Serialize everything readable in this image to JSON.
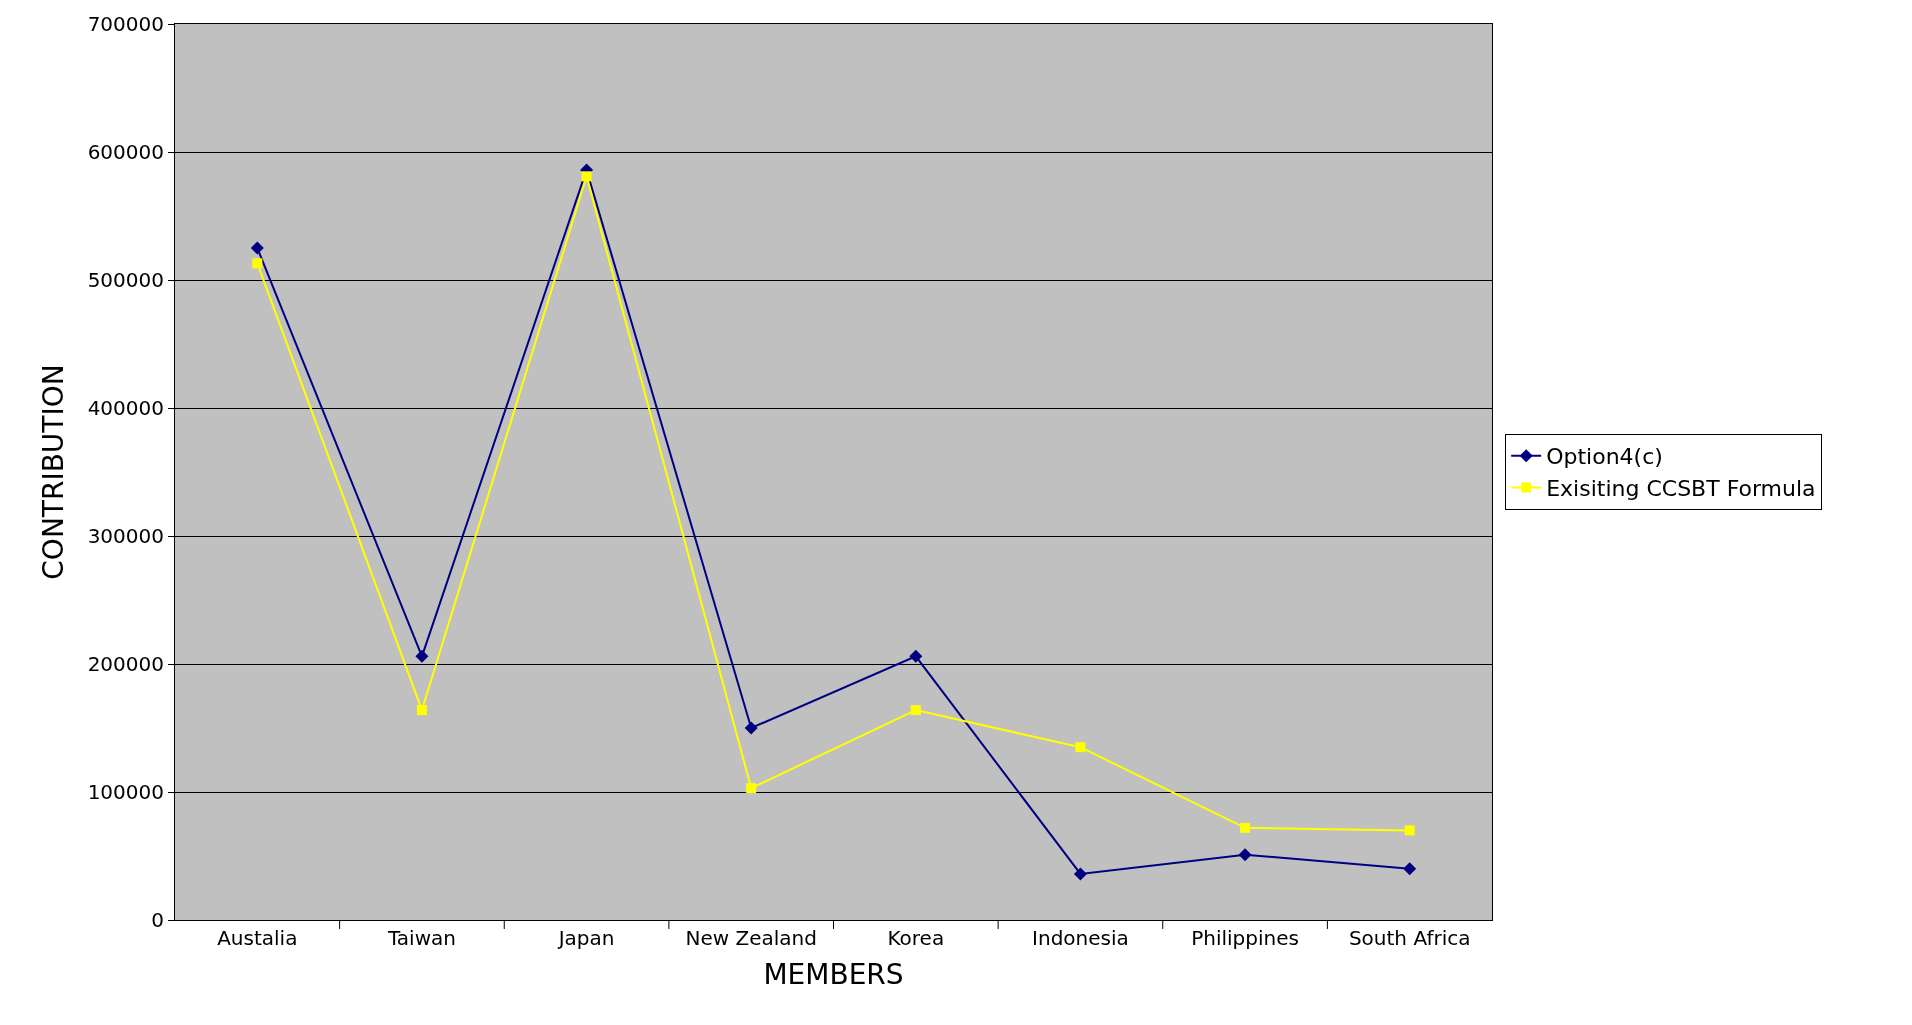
{
  "chart_data": {
    "type": "line",
    "xlabel": "MEMBERS",
    "ylabel": "CONTRIBUTION",
    "categories": [
      "Austalia",
      "Taiwan",
      "Japan",
      "New Zealand",
      "Korea",
      "Indonesia",
      "Philippines",
      "South Africa"
    ],
    "series": [
      {
        "name": "Option4(c)",
        "color": "#000080",
        "marker": "diamond",
        "values": [
          525000,
          206000,
          586000,
          150000,
          206000,
          36000,
          51000,
          40000
        ]
      },
      {
        "name": "Exisiting CCSBT Formula",
        "color": "#ffff00",
        "marker": "square",
        "values": [
          513000,
          164000,
          581000,
          103000,
          164000,
          135000,
          72000,
          70000
        ]
      }
    ],
    "ylim": [
      0,
      700000
    ],
    "yticks": [
      0,
      100000,
      200000,
      300000,
      400000,
      500000,
      600000,
      700000
    ],
    "grid": "y",
    "legend": "right"
  }
}
